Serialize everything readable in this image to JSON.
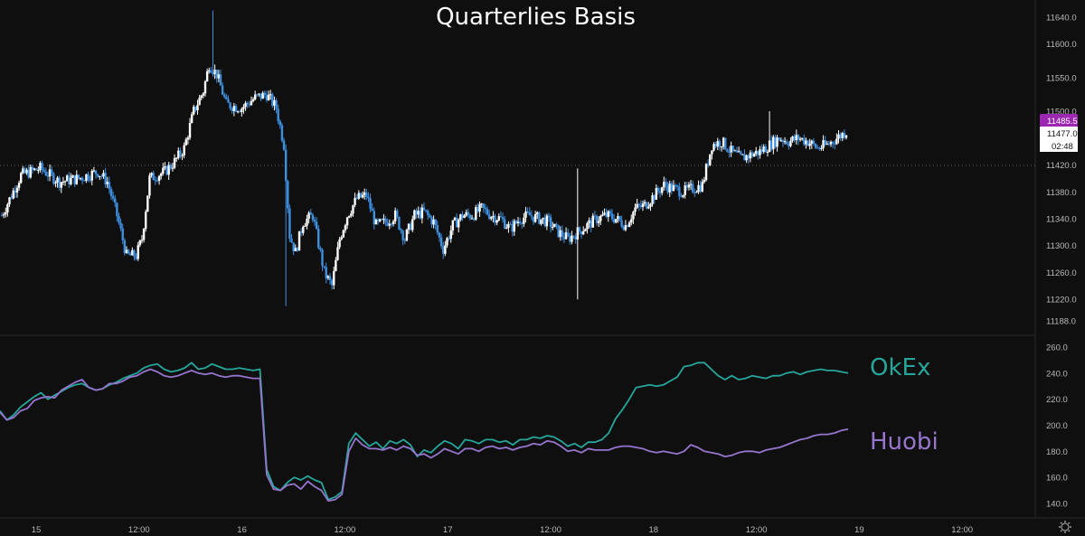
{
  "chart_data": [
    {
      "type": "candlestick",
      "title": "Quarterlies Basis",
      "yticks": [
        11640,
        11600,
        11550,
        11500,
        11420,
        11380,
        11340,
        11300,
        11260,
        11220,
        11188
      ],
      "ytick_labels": [
        "11640.0",
        "11600.0",
        "11550.0",
        "11500.0",
        "11420.0",
        "11380.0",
        "11340.0",
        "11300.0",
        "11260.0",
        "11220.0",
        "11188.0"
      ],
      "last_price_label": "11485.5",
      "price_label_2": "11477.0",
      "countdown_label": "02:48",
      "colors": {
        "up": "#ffffff",
        "down": "#3d8fe0",
        "last": "#9c27b0"
      },
      "anchors": [
        [
          0,
          11345
        ],
        [
          10,
          11405
        ],
        [
          20,
          11415
        ],
        [
          30,
          11395
        ],
        [
          40,
          11400
        ],
        [
          50,
          11410
        ],
        [
          55,
          11395
        ],
        [
          60,
          11345
        ],
        [
          65,
          11285
        ],
        [
          70,
          11285
        ],
        [
          73,
          11310
        ],
        [
          77,
          11400
        ],
        [
          85,
          11410
        ],
        [
          90,
          11425
        ],
        [
          95,
          11445
        ],
        [
          100,
          11500
        ],
        [
          105,
          11530
        ],
        [
          108,
          11570
        ],
        [
          112,
          11555
        ],
        [
          117,
          11510
        ],
        [
          125,
          11505
        ],
        [
          132,
          11520
        ],
        [
          138,
          11525
        ],
        [
          143,
          11505
        ],
        [
          147,
          11450
        ],
        [
          150,
          11315
        ],
        [
          153,
          11290
        ],
        [
          157,
          11335
        ],
        [
          162,
          11345
        ],
        [
          168,
          11260
        ],
        [
          172,
          11240
        ],
        [
          176,
          11310
        ],
        [
          180,
          11345
        ],
        [
          185,
          11370
        ],
        [
          190,
          11375
        ],
        [
          195,
          11330
        ],
        [
          200,
          11335
        ],
        [
          205,
          11345
        ],
        [
          210,
          11310
        ],
        [
          215,
          11345
        ],
        [
          220,
          11350
        ],
        [
          225,
          11335
        ],
        [
          230,
          11295
        ],
        [
          235,
          11330
        ],
        [
          240,
          11345
        ],
        [
          245,
          11345
        ],
        [
          250,
          11355
        ],
        [
          255,
          11345
        ],
        [
          260,
          11340
        ],
        [
          265,
          11325
        ],
        [
          270,
          11340
        ],
        [
          275,
          11345
        ],
        [
          280,
          11340
        ],
        [
          285,
          11335
        ],
        [
          290,
          11320
        ],
        [
          295,
          11310
        ],
        [
          300,
          11320
        ],
        [
          305,
          11330
        ],
        [
          310,
          11340
        ],
        [
          315,
          11345
        ],
        [
          320,
          11340
        ],
        [
          325,
          11330
        ],
        [
          330,
          11355
        ],
        [
          335,
          11360
        ],
        [
          340,
          11375
        ],
        [
          345,
          11390
        ],
        [
          350,
          11385
        ],
        [
          355,
          11380
        ],
        [
          360,
          11385
        ],
        [
          365,
          11390
        ],
        [
          370,
          11450
        ],
        [
          375,
          11455
        ],
        [
          380,
          11440
        ],
        [
          385,
          11430
        ],
        [
          390,
          11435
        ],
        [
          395,
          11440
        ],
        [
          400,
          11450
        ],
        [
          405,
          11460
        ],
        [
          410,
          11455
        ],
        [
          415,
          11460
        ],
        [
          420,
          11455
        ],
        [
          425,
          11445
        ],
        [
          430,
          11450
        ],
        [
          435,
          11460
        ],
        [
          440,
          11470
        ]
      ],
      "spikes": [
        [
          110,
          11650,
          "high"
        ],
        [
          148,
          11210,
          "low"
        ],
        [
          300,
          11415,
          "high"
        ],
        [
          300,
          11220,
          "low"
        ],
        [
          400,
          11500,
          "high"
        ]
      ]
    },
    {
      "type": "line",
      "yticks": [
        260,
        240,
        220,
        200,
        180,
        160,
        140
      ],
      "ytick_labels": [
        "260.0",
        "240.0",
        "220.0",
        "200.0",
        "180.0",
        "160.0",
        "140.0"
      ],
      "series": [
        {
          "name": "OkEx",
          "color": "#26a69a",
          "values": [
            211,
            204,
            208,
            214,
            218,
            222,
            225,
            220,
            223,
            226,
            229,
            231,
            232,
            229,
            227,
            228,
            231,
            233,
            236,
            238,
            240,
            244,
            246,
            247,
            243,
            241,
            242,
            244,
            248,
            243,
            244,
            247,
            245,
            243,
            243,
            244,
            243,
            242,
            243,
            166,
            153,
            150,
            156,
            160,
            158,
            161,
            158,
            156,
            143,
            145,
            149,
            186,
            194,
            189,
            184,
            187,
            182,
            188,
            186,
            189,
            185,
            176,
            181,
            179,
            184,
            188,
            186,
            182,
            189,
            188,
            186,
            189,
            189,
            187,
            188,
            185,
            189,
            189,
            191,
            190,
            192,
            191,
            188,
            184,
            186,
            183,
            187,
            187,
            189,
            194,
            205,
            212,
            220,
            229,
            230,
            231,
            230,
            231,
            234,
            237,
            245,
            246,
            248,
            248,
            243,
            238,
            235,
            238,
            235,
            236,
            238,
            237,
            236,
            238,
            238,
            240,
            241,
            239,
            241,
            242,
            243,
            242,
            242,
            241,
            240
          ]
        },
        {
          "name": "Huobi",
          "color": "#9575cd",
          "values": [
            210,
            204,
            206,
            211,
            213,
            219,
            221,
            222,
            221,
            227,
            230,
            233,
            235,
            229,
            227,
            228,
            232,
            232,
            234,
            237,
            238,
            241,
            243,
            241,
            238,
            237,
            238,
            240,
            242,
            240,
            239,
            240,
            238,
            237,
            238,
            238,
            237,
            236,
            236,
            162,
            151,
            150,
            154,
            155,
            151,
            157,
            153,
            150,
            142,
            143,
            147,
            180,
            190,
            185,
            182,
            182,
            181,
            183,
            181,
            184,
            182,
            177,
            178,
            175,
            178,
            182,
            180,
            178,
            182,
            182,
            180,
            183,
            184,
            182,
            183,
            181,
            183,
            184,
            186,
            185,
            188,
            187,
            184,
            180,
            181,
            179,
            182,
            181,
            181,
            181,
            183,
            184,
            184,
            183,
            182,
            180,
            179,
            180,
            179,
            178,
            180,
            185,
            183,
            180,
            179,
            178,
            176,
            177,
            179,
            180,
            180,
            179,
            181,
            182,
            183,
            185,
            187,
            189,
            190,
            192,
            193,
            193,
            194,
            196,
            197
          ]
        }
      ]
    }
  ],
  "x_axis": {
    "labels": [
      "15",
      "12:00",
      "16",
      "12:00",
      "17",
      "12:00",
      "18",
      "12:00",
      "19",
      "12:00"
    ]
  },
  "icons": {
    "settings": "gear-icon"
  }
}
